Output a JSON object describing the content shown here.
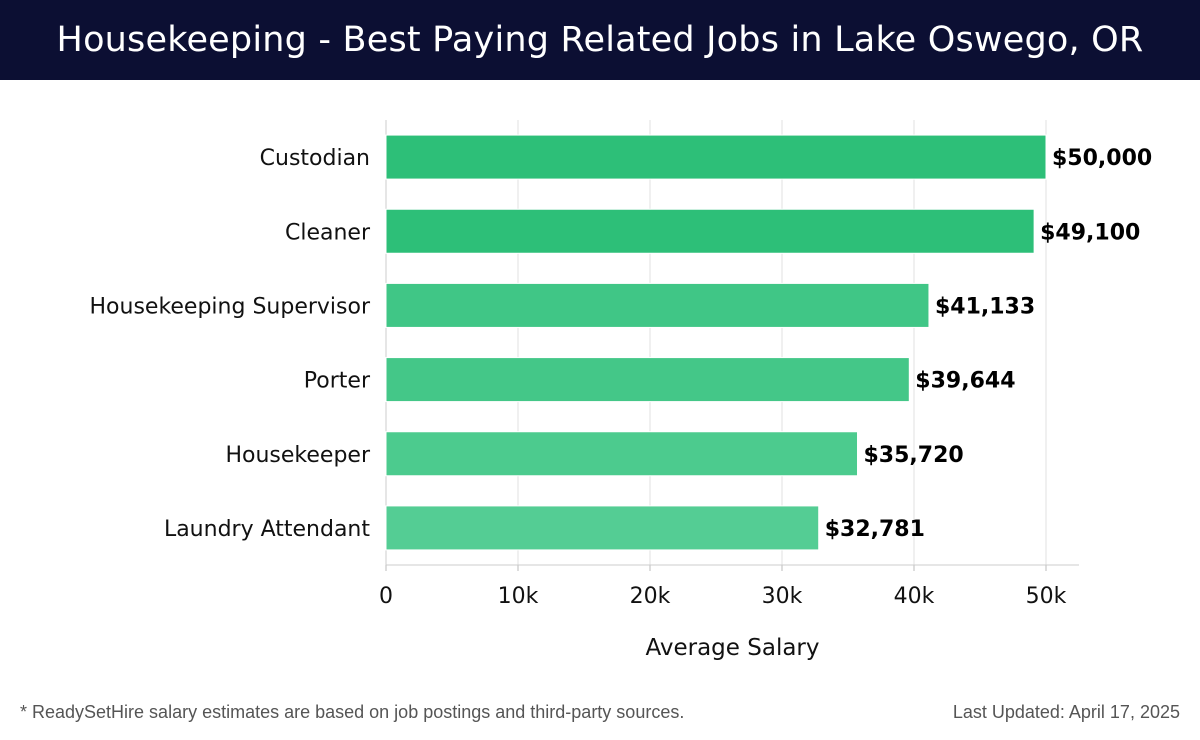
{
  "header": {
    "title": "Housekeeping - Best Paying Related Jobs in Lake Oswego, OR"
  },
  "chart_data": {
    "type": "bar",
    "orientation": "horizontal",
    "categories": [
      "Custodian",
      "Cleaner",
      "Housekeeping Supervisor",
      "Porter",
      "Housekeeper",
      "Laundry Attendant"
    ],
    "values": [
      50000,
      49100,
      41133,
      39644,
      35720,
      32781
    ],
    "value_labels": [
      "$50,000",
      "$49,100",
      "$41,133",
      "$39,644",
      "$35,720",
      "$32,781"
    ],
    "xlabel": "Average Salary",
    "ylabel": "",
    "xlim": [
      0,
      52500
    ],
    "x_ticks": [
      0,
      10000,
      20000,
      30000,
      40000,
      50000
    ],
    "x_tick_labels": [
      "0",
      "10k",
      "20k",
      "30k",
      "40k",
      "50k"
    ],
    "grid": true,
    "bar_colors": [
      "#2dbf78",
      "#2dbf78",
      "#40c686",
      "#44c788",
      "#4ccb8e",
      "#54cd94"
    ]
  },
  "footer": {
    "note": "* ReadySetHire salary estimates are based on job postings and third-party sources.",
    "updated": "Last Updated: April 17, 2025"
  }
}
